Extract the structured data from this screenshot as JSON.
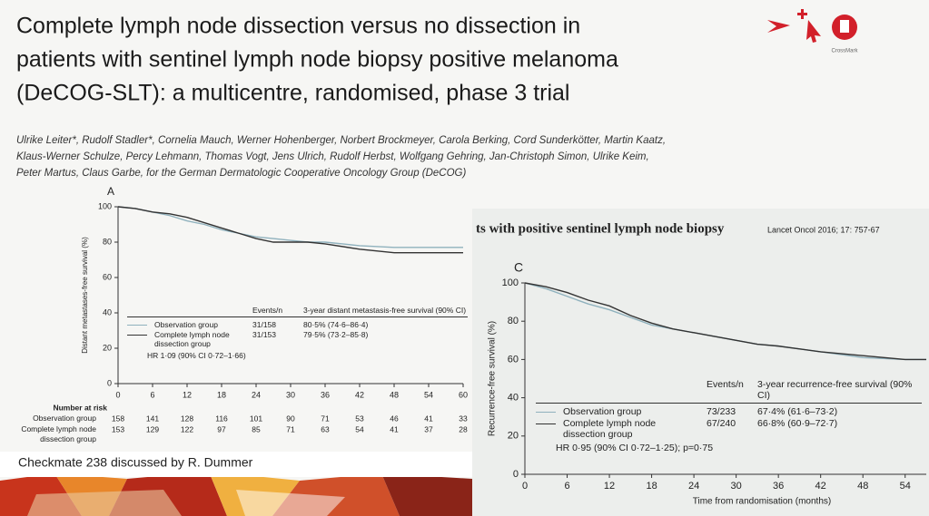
{
  "slide": {
    "title_lines": [
      "Complete lymph node dissection versus no dissection in",
      "patients with sentinel lymph node biopsy positive melanoma",
      "(DeCOG-SLT): a multicentre, randomised, phase 3 trial"
    ],
    "crossmark": "CrossMark",
    "authors_lines": [
      "Ulrike Leiter*, Rudolf Stadler*, Cornelia Mauch, Werner Hohenberger, Norbert Brockmeyer, Carola Berking, Cord Sunderkötter, Martin Kaatz,",
      "Klaus-Werner Schulze, Percy Lehmann, Thomas Vogt, Jens Ulrich, Rudolf Herbst, Wolfgang Gehring, Jan-Christoph Simon, Ulrike Keim,",
      "Peter Martus, Claus Garbe, for the German Dermatologic Cooperative Oncology Group (DeCOG)"
    ],
    "subtitle_fragment": "ts with positive sentinel lymph node biopsy",
    "citation": "Lancet Oncol 2016; 17: 757-67",
    "caption": "Checkmate 238 discussed by R. Dummer"
  },
  "chart_data": [
    {
      "type": "line",
      "title": "A",
      "ylabel": "Distant metastases-free survival (%)",
      "xlim": [
        0,
        60
      ],
      "ylim": [
        0,
        100
      ],
      "xticks": [
        0,
        6,
        12,
        18,
        24,
        30,
        36,
        42,
        48,
        54,
        60
      ],
      "yticks": [
        0,
        20,
        40,
        60,
        80,
        100
      ],
      "x": [
        0,
        3,
        6,
        9,
        12,
        15,
        18,
        21,
        24,
        27,
        30,
        33,
        36,
        42,
        48,
        54,
        60
      ],
      "series": [
        {
          "name": "Observation group",
          "color": "#8fb1bd",
          "values": [
            100,
            99,
            97,
            95,
            92,
            90,
            87,
            85,
            83,
            82,
            81,
            80,
            80,
            78,
            77,
            77,
            77
          ]
        },
        {
          "name": "Complete lymph node dissection group",
          "color": "#333333",
          "values": [
            100,
            99,
            97,
            96,
            94,
            91,
            88,
            85,
            82,
            80,
            80,
            80,
            79,
            76,
            74,
            74,
            74
          ]
        }
      ],
      "legend": {
        "header": [
          "Events/n",
          "3-year distant metastasis-free survival (90% CI)"
        ],
        "rows": [
          {
            "events": "31/158",
            "survival": "80·5% (74·6–86·4)"
          },
          {
            "events": "31/153",
            "survival": "79·5% (73·2–85·8)"
          }
        ],
        "hr": "HR 1·09 (90% CI 0·72–1·66)"
      },
      "risk_table": {
        "title": "Number at risk",
        "rows": [
          {
            "label": "Observation group",
            "values": [
              158,
              141,
              128,
              116,
              101,
              90,
              71,
              53,
              46,
              41,
              33
            ]
          },
          {
            "label": "Complete lymph node dissection group",
            "values": [
              153,
              129,
              122,
              97,
              85,
              71,
              63,
              54,
              41,
              37,
              28
            ]
          }
        ]
      }
    },
    {
      "type": "line",
      "title": "C",
      "ylabel": "Recurrence-free survival (%)",
      "xlabel": "Time from randomisation (months)",
      "xlim": [
        0,
        57
      ],
      "ylim": [
        0,
        100
      ],
      "xticks": [
        0,
        6,
        12,
        18,
        24,
        30,
        36,
        42,
        48,
        54
      ],
      "yticks": [
        0,
        20,
        40,
        60,
        80,
        100
      ],
      "x": [
        0,
        3,
        6,
        9,
        12,
        15,
        18,
        21,
        24,
        27,
        30,
        33,
        36,
        42,
        48,
        54,
        57
      ],
      "series": [
        {
          "name": "Observation group",
          "color": "#8fb1bd",
          "values": [
            100,
            97,
            93,
            89,
            86,
            82,
            78,
            76,
            74,
            72,
            70,
            68,
            67,
            64,
            61,
            60,
            60
          ]
        },
        {
          "name": "Complete lymph node dissection group",
          "color": "#333333",
          "values": [
            100,
            98,
            95,
            91,
            88,
            83,
            79,
            76,
            74,
            72,
            70,
            68,
            67,
            64,
            62,
            60,
            60
          ]
        }
      ],
      "legend": {
        "header": [
          "Events/n",
          "3-year recurrence-free survival (90% CI)"
        ],
        "rows": [
          {
            "events": "73/233",
            "survival": "67·4% (61·6–73·2)"
          },
          {
            "events": "67/240",
            "survival": "66·8% (60·9–72·7)"
          }
        ],
        "hr": "HR 0·95 (90% CI 0·72–1·25); p=0·75"
      }
    }
  ]
}
